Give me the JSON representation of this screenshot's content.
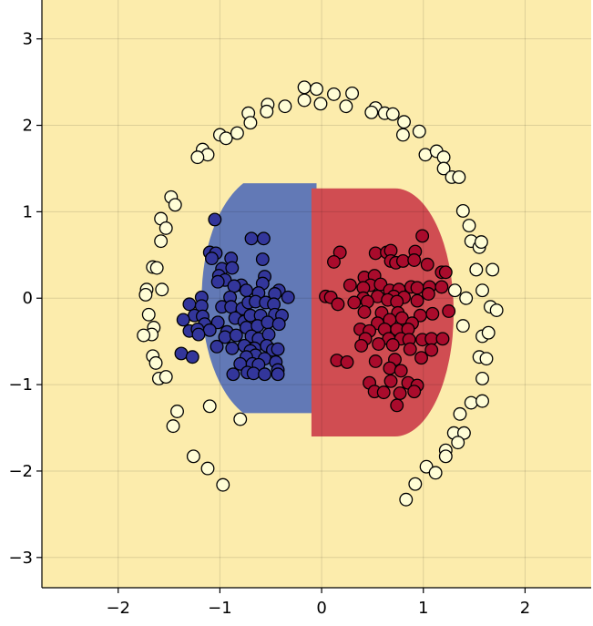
{
  "chart_data": {
    "type": "scatter",
    "title": "",
    "xlabel": "",
    "ylabel": "",
    "xlim": [
      -2.75,
      2.65
    ],
    "ylim": [
      -3.35,
      3.45
    ],
    "grid": true,
    "x_ticks": [
      -2,
      -1,
      0,
      1,
      2
    ],
    "y_ticks": [
      -3,
      -2,
      -1,
      0,
      1,
      2,
      3
    ],
    "x_tick_labels": [
      "−2",
      "−1",
      "0",
      "1",
      "2"
    ],
    "y_tick_labels": [
      "−3",
      "−2",
      "−1",
      "0",
      "1",
      "2",
      "3"
    ],
    "colors": {
      "background_region": "#fcecac",
      "blue_region": "#6279b6",
      "red_region": "#d04d52",
      "outer_points": "#fffdd6",
      "blue_points": "#33369b",
      "red_points": "#a90b2c",
      "grid": "#d8d0b0"
    },
    "regions": [
      {
        "class": "blue",
        "center": [
          -0.77,
          -0.12
        ],
        "shape": "left half-disc",
        "x_range": [
          -1.45,
          -0.05
        ],
        "y_range": [
          -1.33,
          1.33
        ]
      },
      {
        "class": "red",
        "center": [
          0.72,
          -0.12
        ],
        "shape": "right half-disc",
        "x_range": [
          -0.1,
          1.28
        ],
        "y_range": [
          -1.6,
          1.27
        ]
      }
    ],
    "series": [
      {
        "class": "outer-ring",
        "points": [
          [
            -0.17,
            2.44
          ],
          [
            -0.05,
            2.42
          ],
          [
            0.12,
            2.36
          ],
          [
            0.3,
            2.37
          ],
          [
            -0.17,
            2.29
          ],
          [
            -0.01,
            2.25
          ],
          [
            0.24,
            2.22
          ],
          [
            -0.36,
            2.22
          ],
          [
            -0.53,
            2.24
          ],
          [
            -0.54,
            2.16
          ],
          [
            -0.72,
            2.14
          ],
          [
            -0.7,
            2.03
          ],
          [
            0.53,
            2.2
          ],
          [
            0.62,
            2.14
          ],
          [
            0.7,
            2.13
          ],
          [
            0.49,
            2.15
          ],
          [
            0.81,
            2.04
          ],
          [
            0.8,
            1.89
          ],
          [
            0.96,
            1.93
          ],
          [
            -1.0,
            1.89
          ],
          [
            -0.94,
            1.85
          ],
          [
            -0.83,
            1.91
          ],
          [
            -1.17,
            1.72
          ],
          [
            -1.12,
            1.66
          ],
          [
            -1.22,
            1.63
          ],
          [
            1.02,
            1.66
          ],
          [
            1.13,
            1.7
          ],
          [
            1.2,
            1.63
          ],
          [
            1.2,
            1.5
          ],
          [
            1.28,
            1.4
          ],
          [
            1.35,
            1.4
          ],
          [
            -1.48,
            1.17
          ],
          [
            -1.44,
            1.08
          ],
          [
            -1.58,
            0.92
          ],
          [
            -1.53,
            0.81
          ],
          [
            -1.58,
            0.66
          ],
          [
            1.39,
            1.01
          ],
          [
            1.45,
            0.84
          ],
          [
            1.47,
            0.66
          ],
          [
            1.55,
            0.59
          ],
          [
            1.57,
            0.65
          ],
          [
            -1.66,
            0.36
          ],
          [
            -1.62,
            0.35
          ],
          [
            -1.72,
            0.1
          ],
          [
            -1.73,
            0.04
          ],
          [
            -1.57,
            0.1
          ],
          [
            1.52,
            0.33
          ],
          [
            1.68,
            0.33
          ],
          [
            1.58,
            0.09
          ],
          [
            1.66,
            -0.1
          ],
          [
            1.72,
            -0.14
          ],
          [
            1.42,
            0.0
          ],
          [
            1.31,
            0.09
          ],
          [
            -1.7,
            -0.19
          ],
          [
            -1.65,
            -0.34
          ],
          [
            -1.67,
            -0.42
          ],
          [
            -1.75,
            -0.43
          ],
          [
            -1.66,
            -0.67
          ],
          [
            -1.63,
            -0.75
          ],
          [
            -1.6,
            -0.93
          ],
          [
            -1.53,
            -0.91
          ],
          [
            1.39,
            -0.32
          ],
          [
            1.58,
            -0.44
          ],
          [
            1.64,
            -0.4
          ],
          [
            1.55,
            -0.68
          ],
          [
            1.62,
            -0.7
          ],
          [
            1.58,
            -0.93
          ],
          [
            1.47,
            -1.21
          ],
          [
            1.58,
            -1.19
          ],
          [
            1.36,
            -1.34
          ],
          [
            -1.42,
            -1.31
          ],
          [
            -1.46,
            -1.48
          ],
          [
            -1.1,
            -1.25
          ],
          [
            -0.8,
            -1.4
          ],
          [
            1.3,
            -1.56
          ],
          [
            1.4,
            -1.56
          ],
          [
            1.34,
            -1.67
          ],
          [
            1.22,
            -1.76
          ],
          [
            1.22,
            -1.83
          ],
          [
            -1.26,
            -1.83
          ],
          [
            -1.12,
            -1.97
          ],
          [
            -0.97,
            -2.16
          ],
          [
            1.03,
            -1.95
          ],
          [
            1.12,
            -2.02
          ],
          [
            0.92,
            -2.15
          ],
          [
            0.83,
            -2.33
          ]
        ]
      },
      {
        "class": "blue",
        "points": [
          [
            -1.05,
            0.91
          ],
          [
            -0.69,
            0.69
          ],
          [
            -0.57,
            0.69
          ],
          [
            -1.1,
            0.53
          ],
          [
            -1.04,
            0.52
          ],
          [
            -1.08,
            0.46
          ],
          [
            -0.89,
            0.46
          ],
          [
            -0.58,
            0.45
          ],
          [
            -0.98,
            0.34
          ],
          [
            -0.88,
            0.35
          ],
          [
            -1.01,
            0.26
          ],
          [
            -0.95,
            0.21
          ],
          [
            -1.02,
            0.19
          ],
          [
            -0.56,
            0.25
          ],
          [
            -0.79,
            0.15
          ],
          [
            -0.86,
            0.14
          ],
          [
            -0.58,
            0.17
          ],
          [
            -0.74,
            0.09
          ],
          [
            -0.62,
            0.06
          ],
          [
            -0.42,
            0.09
          ],
          [
            -0.46,
            0.05
          ],
          [
            -0.33,
            0.01
          ],
          [
            -0.9,
            0.01
          ],
          [
            -1.18,
            0.01
          ],
          [
            -1.3,
            -0.07
          ],
          [
            -1.18,
            -0.09
          ],
          [
            -1.25,
            -0.2
          ],
          [
            -1.17,
            -0.21
          ],
          [
            -0.98,
            -0.1
          ],
          [
            -0.89,
            -0.1
          ],
          [
            -0.78,
            -0.12
          ],
          [
            -0.72,
            -0.05
          ],
          [
            -0.65,
            -0.04
          ],
          [
            -0.55,
            -0.05
          ],
          [
            -0.47,
            -0.07
          ],
          [
            -1.36,
            -0.25
          ],
          [
            -1.15,
            -0.3
          ],
          [
            -1.02,
            -0.28
          ],
          [
            -0.85,
            -0.23
          ],
          [
            -0.76,
            -0.27
          ],
          [
            -0.7,
            -0.2
          ],
          [
            -0.6,
            -0.2
          ],
          [
            -0.46,
            -0.19
          ],
          [
            -0.39,
            -0.2
          ],
          [
            -1.3,
            -0.38
          ],
          [
            -1.22,
            -0.36
          ],
          [
            -1.1,
            -0.37
          ],
          [
            -0.93,
            -0.39
          ],
          [
            -0.74,
            -0.34
          ],
          [
            -0.63,
            -0.32
          ],
          [
            -0.53,
            -0.28
          ],
          [
            -0.42,
            -0.3
          ],
          [
            -1.21,
            -0.42
          ],
          [
            -0.95,
            -0.45
          ],
          [
            -0.84,
            -0.43
          ],
          [
            -0.69,
            -0.44
          ],
          [
            -0.62,
            -0.47
          ],
          [
            -0.52,
            -0.42
          ],
          [
            -1.03,
            -0.56
          ],
          [
            -0.88,
            -0.58
          ],
          [
            -0.76,
            -0.55
          ],
          [
            -0.66,
            -0.58
          ],
          [
            -0.54,
            -0.55
          ],
          [
            -1.38,
            -0.64
          ],
          [
            -1.27,
            -0.68
          ],
          [
            -0.7,
            -0.61
          ],
          [
            -0.65,
            -0.66
          ],
          [
            -0.48,
            -0.6
          ],
          [
            -0.43,
            -0.59
          ],
          [
            -0.74,
            -0.68
          ],
          [
            -0.56,
            -0.7
          ],
          [
            -0.8,
            -0.76
          ],
          [
            -0.68,
            -0.76
          ],
          [
            -0.45,
            -0.74
          ],
          [
            -0.62,
            -0.77
          ],
          [
            -0.43,
            -0.83
          ],
          [
            -0.87,
            -0.88
          ],
          [
            -0.73,
            -0.86
          ],
          [
            -0.67,
            -0.87
          ],
          [
            -0.56,
            -0.88
          ],
          [
            -0.43,
            -0.88
          ]
        ]
      },
      {
        "class": "red",
        "points": [
          [
            0.99,
            0.72
          ],
          [
            0.18,
            0.53
          ],
          [
            0.53,
            0.52
          ],
          [
            0.64,
            0.53
          ],
          [
            0.68,
            0.55
          ],
          [
            0.92,
            0.54
          ],
          [
            0.12,
            0.42
          ],
          [
            0.68,
            0.43
          ],
          [
            0.73,
            0.41
          ],
          [
            0.8,
            0.43
          ],
          [
            0.91,
            0.44
          ],
          [
            1.04,
            0.39
          ],
          [
            1.18,
            0.3
          ],
          [
            1.22,
            0.3
          ],
          [
            0.42,
            0.24
          ],
          [
            0.52,
            0.26
          ],
          [
            0.48,
            0.15
          ],
          [
            0.58,
            0.16
          ],
          [
            0.28,
            0.15
          ],
          [
            0.41,
            0.12
          ],
          [
            0.88,
            0.13
          ],
          [
            0.67,
            0.09
          ],
          [
            0.76,
            0.1
          ],
          [
            0.94,
            0.12
          ],
          [
            1.06,
            0.13
          ],
          [
            1.18,
            0.13
          ],
          [
            0.04,
            0.02
          ],
          [
            0.09,
            0.01
          ],
          [
            0.41,
            0.0
          ],
          [
            0.55,
            0.02
          ],
          [
            0.71,
            0.02
          ],
          [
            0.81,
            0.01
          ],
          [
            1.05,
            0.05
          ],
          [
            0.16,
            -0.07
          ],
          [
            0.32,
            -0.05
          ],
          [
            0.45,
            -0.04
          ],
          [
            0.65,
            -0.02
          ],
          [
            0.74,
            -0.04
          ],
          [
            0.94,
            -0.03
          ],
          [
            0.42,
            -0.16
          ],
          [
            0.59,
            -0.17
          ],
          [
            0.75,
            -0.17
          ],
          [
            0.97,
            -0.2
          ],
          [
            1.09,
            -0.18
          ],
          [
            1.25,
            -0.15
          ],
          [
            0.67,
            -0.25
          ],
          [
            0.79,
            -0.23
          ],
          [
            0.55,
            -0.29
          ],
          [
            0.89,
            -0.29
          ],
          [
            0.38,
            -0.36
          ],
          [
            0.47,
            -0.38
          ],
          [
            0.62,
            -0.36
          ],
          [
            0.74,
            -0.36
          ],
          [
            0.85,
            -0.36
          ],
          [
            0.43,
            -0.47
          ],
          [
            0.66,
            -0.47
          ],
          [
            0.78,
            -0.47
          ],
          [
            0.86,
            -0.48
          ],
          [
            0.99,
            -0.48
          ],
          [
            1.08,
            -0.47
          ],
          [
            1.19,
            -0.47
          ],
          [
            0.39,
            -0.55
          ],
          [
            0.56,
            -0.53
          ],
          [
            0.7,
            -0.54
          ],
          [
            0.87,
            -0.59
          ],
          [
            1.08,
            -0.6
          ],
          [
            0.15,
            -0.72
          ],
          [
            0.25,
            -0.74
          ],
          [
            0.53,
            -0.73
          ],
          [
            0.72,
            -0.71
          ],
          [
            0.98,
            -0.69
          ],
          [
            0.67,
            -0.81
          ],
          [
            0.78,
            -0.84
          ],
          [
            0.47,
            -0.98
          ],
          [
            0.68,
            -0.96
          ],
          [
            0.85,
            -0.98
          ],
          [
            0.94,
            -1.01
          ],
          [
            0.52,
            -1.08
          ],
          [
            0.61,
            -1.09
          ],
          [
            0.77,
            -1.1
          ],
          [
            0.91,
            -1.08
          ],
          [
            0.74,
            -1.24
          ]
        ]
      }
    ]
  }
}
